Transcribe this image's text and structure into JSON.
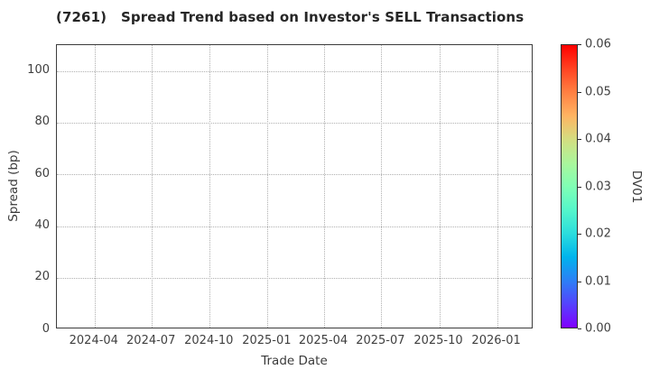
{
  "chart_data": {
    "type": "scatter",
    "title": "(7261)   Spread Trend based on Investor's SELL Transactions",
    "xlabel": "Trade Date",
    "ylabel": "Spread (bp)",
    "x_tick_labels": [
      "2024-04",
      "2024-07",
      "2024-10",
      "2025-01",
      "2025-04",
      "2025-07",
      "2025-10",
      "2026-01"
    ],
    "xlim": [
      "2024-02-01",
      "2026-02-28"
    ],
    "y_ticks": [
      0,
      20,
      40,
      60,
      80,
      100
    ],
    "ylim": [
      0,
      110
    ],
    "grid": true,
    "grid_style": "dotted",
    "points": [],
    "colorbar": {
      "label": "DV01",
      "tick_labels": [
        "0.00",
        "0.01",
        "0.02",
        "0.03",
        "0.04",
        "0.05",
        "0.06"
      ],
      "min": 0.0,
      "max": 0.06,
      "colormap": "rainbow",
      "gradient_stops": [
        "#8000FF",
        "#5542FD",
        "#2B80F6",
        "#00B4EC",
        "#2BDDDD",
        "#55F6CA",
        "#80FFB4",
        "#AAF69B",
        "#D4DD80",
        "#FFB462",
        "#FF8042",
        "#FF4221",
        "#FF0000"
      ]
    },
    "colors": {
      "background": "#ffffff",
      "spine": "#3c3c3c",
      "grid": "#b0b0b0",
      "title_text": "#262626",
      "tick_text": "#3f3f3f"
    }
  }
}
